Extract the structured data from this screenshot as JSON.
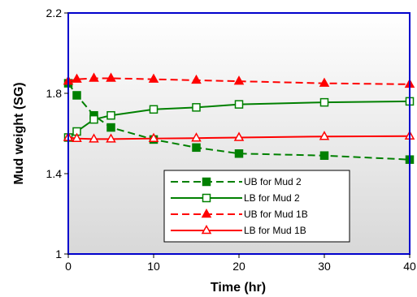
{
  "chart_data": {
    "type": "line",
    "xlabel": "Time (hr)",
    "ylabel": "Mud weight (SG)",
    "xlim": [
      0,
      40
    ],
    "ylim": [
      1,
      2.2
    ],
    "xticks": [
      "0",
      "10",
      "20",
      "30",
      "40"
    ],
    "yticks": [
      "1",
      "1.4",
      "1.8",
      "2.2"
    ],
    "grid": false,
    "legend_position": "bottom-center",
    "colors": {
      "plot_border": "#0000cc",
      "plot_bg_top": "#ffffff",
      "plot_bg_bottom": "#d8d8d8"
    },
    "series": [
      {
        "name": "UB for Mud 2",
        "color": "#008000",
        "dash": "dashed",
        "marker": "filled-square",
        "x": [
          0,
          1,
          3,
          5,
          10,
          15,
          20,
          30,
          40
        ],
        "y": [
          1.85,
          1.79,
          1.69,
          1.63,
          1.57,
          1.53,
          1.5,
          1.49,
          1.47
        ]
      },
      {
        "name": "LB for Mud 2",
        "color": "#008000",
        "dash": "solid",
        "marker": "open-square",
        "x": [
          0,
          1,
          3,
          5,
          10,
          15,
          20,
          30,
          40
        ],
        "y": [
          1.58,
          1.61,
          1.67,
          1.69,
          1.72,
          1.73,
          1.745,
          1.755,
          1.76
        ]
      },
      {
        "name": "UB for Mud 1B",
        "color": "#ff0000",
        "dash": "dashed",
        "marker": "filled-triangle",
        "x": [
          0,
          1,
          3,
          5,
          10,
          15,
          20,
          30,
          40
        ],
        "y": [
          1.86,
          1.87,
          1.875,
          1.875,
          1.87,
          1.865,
          1.86,
          1.85,
          1.845
        ]
      },
      {
        "name": "LB for Mud 1B",
        "color": "#ff0000",
        "dash": "solid",
        "marker": "open-triangle",
        "x": [
          0,
          1,
          3,
          5,
          10,
          15,
          20,
          30,
          40
        ],
        "y": [
          1.58,
          1.575,
          1.572,
          1.572,
          1.575,
          1.577,
          1.58,
          1.585,
          1.587
        ]
      }
    ]
  }
}
